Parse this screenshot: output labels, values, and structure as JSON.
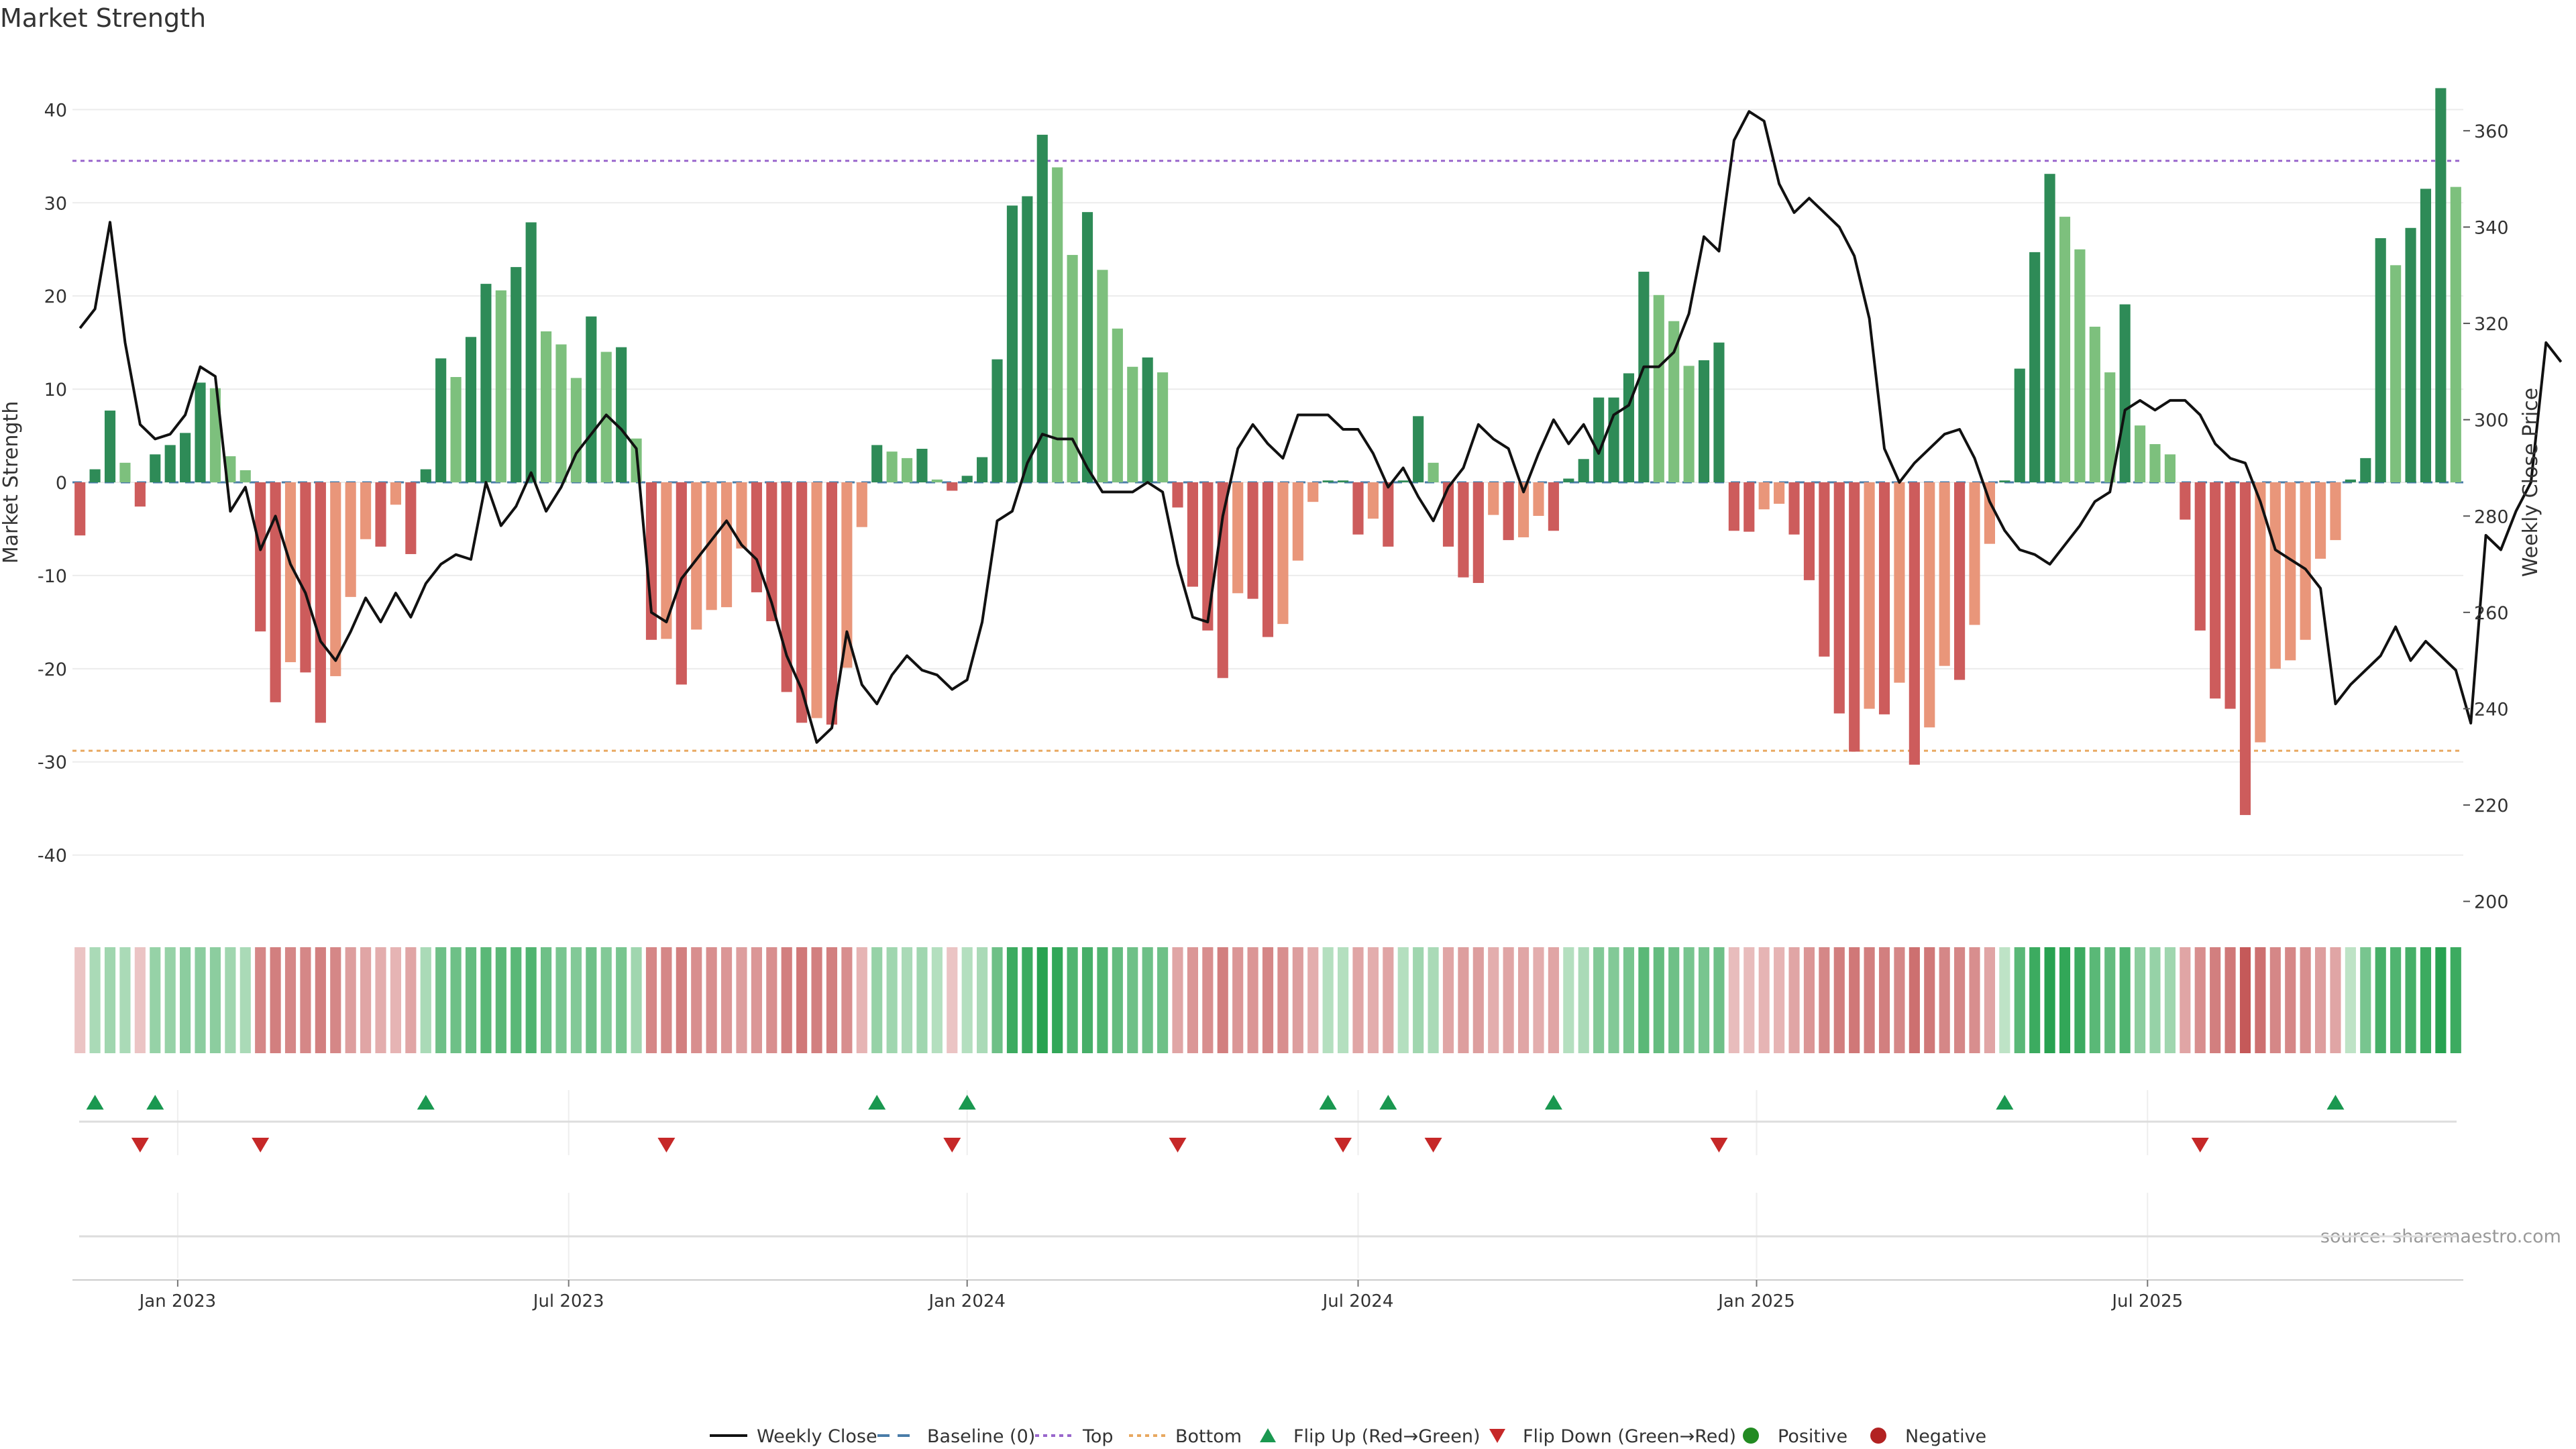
{
  "chart_data": {
    "type": "bar",
    "title": "Market Strength",
    "ylabel": "Market Strength",
    "y2label": "Weekly Close Price",
    "source": "source: sharemaestro.com",
    "ylim": [
      -46,
      46
    ],
    "y2lim": [
      198,
      376
    ],
    "yticks": [
      40,
      30,
      20,
      10,
      0,
      -10,
      -20,
      -30,
      -40
    ],
    "y2ticks": [
      360,
      340,
      320,
      300,
      280,
      260,
      240,
      220,
      200
    ],
    "top_line": 34.5,
    "bottom_line": -28.8,
    "xtick_labels": [
      "Jan 2023",
      "Jul 2023",
      "Jan 2024",
      "Jul 2024",
      "Jan 2025",
      "Jul 2025"
    ],
    "xtick_weeks": [
      7,
      33,
      59.5,
      85.5,
      112,
      138
    ],
    "strength": [
      -5.7,
      1.4,
      7.7,
      2.1,
      -2.6,
      3.0,
      4.0,
      5.3,
      10.7,
      10.1,
      2.8,
      1.3,
      -16.0,
      -23.6,
      -19.3,
      -20.4,
      -25.8,
      -20.8,
      -12.3,
      -6.1,
      -6.9,
      -2.4,
      -7.7,
      1.4,
      13.3,
      11.3,
      15.6,
      21.3,
      20.6,
      23.1,
      27.9,
      16.2,
      14.8,
      11.2,
      17.8,
      14.0,
      14.5,
      4.7,
      -16.9,
      -16.8,
      -21.7,
      -15.8,
      -13.7,
      -13.4,
      -7.1,
      -11.8,
      -14.9,
      -22.5,
      -25.8,
      -25.3,
      -26.0,
      -19.9,
      -4.8,
      4.0,
      3.3,
      2.6,
      3.6,
      0.3,
      -0.9,
      0.7,
      2.7,
      13.2,
      29.7,
      30.7,
      37.3,
      33.8,
      24.4,
      29.0,
      22.8,
      16.5,
      12.4,
      13.4,
      11.8,
      -2.7,
      -11.2,
      -15.9,
      -21.0,
      -11.9,
      -12.5,
      -16.6,
      -15.2,
      -8.4,
      -2.1,
      0.2,
      0.2,
      -5.6,
      -3.9,
      -6.9,
      0.2,
      7.1,
      2.1,
      -6.9,
      -10.2,
      -10.8,
      -3.5,
      -6.2,
      -5.9,
      -3.6,
      -5.2,
      0.4,
      2.5,
      9.1,
      9.1,
      11.7,
      22.6,
      20.1,
      17.3,
      12.5,
      13.1,
      15.0,
      -5.2,
      -5.3,
      -2.9,
      -2.3,
      -5.6,
      -10.5,
      -18.7,
      -24.8,
      -28.9,
      -24.3,
      -24.9,
      -21.5,
      -30.3,
      -26.3,
      -19.7,
      -21.2,
      -15.3,
      -6.6,
      0.2,
      12.2,
      24.7,
      33.1,
      28.5,
      25.0,
      16.7,
      11.8,
      19.1,
      6.1,
      4.1,
      3.0,
      -4.0,
      -15.9,
      -23.2,
      -24.3,
      -35.7,
      -27.9,
      -20.0,
      -19.1,
      -16.9,
      -8.2,
      -6.2,
      0.3,
      2.6,
      26.2,
      23.3,
      27.3,
      31.5,
      42.3,
      31.7
    ],
    "weekly_close": [
      319,
      323,
      341,
      316,
      299,
      296,
      297,
      301,
      311,
      309,
      281,
      286,
      273,
      280,
      270,
      264,
      254,
      250,
      256,
      263,
      258,
      264,
      259,
      266,
      270,
      272,
      271,
      287,
      278,
      282,
      289,
      281,
      286,
      293,
      297,
      301,
      298,
      294,
      260,
      258,
      267,
      271,
      275,
      279,
      274,
      271,
      262,
      251,
      244,
      233,
      236,
      256,
      245,
      241,
      247,
      251,
      248,
      247,
      244,
      246,
      258,
      279,
      281,
      291,
      297,
      296,
      296,
      290,
      285,
      285,
      285,
      287,
      285,
      270,
      259,
      258,
      280,
      294,
      299,
      295,
      292,
      301,
      301,
      301,
      298,
      298,
      293,
      286,
      290,
      284,
      279,
      286,
      290,
      299,
      296,
      294,
      285,
      293,
      300,
      295,
      299,
      293,
      301,
      303,
      311,
      311,
      314,
      322,
      338,
      335,
      358,
      364,
      362,
      349,
      343,
      346,
      343,
      340,
      334,
      321,
      294,
      287,
      291,
      294,
      297,
      298,
      292,
      283,
      277,
      273,
      272,
      270,
      274,
      278,
      283,
      285,
      302,
      304,
      302,
      304,
      304,
      301,
      295,
      292,
      291,
      283,
      273,
      271,
      269,
      265,
      241,
      245,
      248,
      251,
      257,
      250,
      254,
      251,
      248,
      237,
      276,
      273,
      281,
      287,
      316,
      312
    ],
    "heat_intensity": [
      0.2,
      0.3,
      0.35,
      0.3,
      0.2,
      0.4,
      0.4,
      0.45,
      0.45,
      0.45,
      0.35,
      0.3,
      0.6,
      0.65,
      0.6,
      0.6,
      0.65,
      0.6,
      0.45,
      0.4,
      0.35,
      0.3,
      0.4,
      0.3,
      0.6,
      0.6,
      0.65,
      0.7,
      0.7,
      0.7,
      0.75,
      0.6,
      0.55,
      0.5,
      0.6,
      0.5,
      0.55,
      0.35,
      0.6,
      0.6,
      0.65,
      0.55,
      0.55,
      0.5,
      0.45,
      0.5,
      0.55,
      0.65,
      0.7,
      0.65,
      0.65,
      0.55,
      0.3,
      0.4,
      0.35,
      0.3,
      0.35,
      0.25,
      0.2,
      0.25,
      0.3,
      0.6,
      0.85,
      0.85,
      0.95,
      0.9,
      0.75,
      0.8,
      0.75,
      0.65,
      0.6,
      0.6,
      0.6,
      0.4,
      0.5,
      0.55,
      0.65,
      0.5,
      0.5,
      0.6,
      0.55,
      0.45,
      0.35,
      0.25,
      0.25,
      0.4,
      0.35,
      0.4,
      0.25,
      0.35,
      0.3,
      0.4,
      0.45,
      0.45,
      0.35,
      0.4,
      0.4,
      0.35,
      0.4,
      0.25,
      0.3,
      0.5,
      0.5,
      0.55,
      0.7,
      0.65,
      0.6,
      0.55,
      0.55,
      0.6,
      0.25,
      0.25,
      0.3,
      0.3,
      0.4,
      0.5,
      0.6,
      0.65,
      0.7,
      0.65,
      0.65,
      0.6,
      0.75,
      0.7,
      0.6,
      0.6,
      0.55,
      0.4,
      0.2,
      0.7,
      0.85,
      0.95,
      0.9,
      0.85,
      0.7,
      0.65,
      0.75,
      0.45,
      0.4,
      0.35,
      0.4,
      0.55,
      0.65,
      0.7,
      0.9,
      0.75,
      0.6,
      0.6,
      0.55,
      0.45,
      0.4,
      0.2,
      0.55,
      0.8,
      0.75,
      0.8,
      0.85,
      0.95,
      0.85
    ],
    "flip_up_weeks": [
      1,
      5,
      23,
      53,
      59,
      83,
      87,
      98,
      128,
      150
    ],
    "flip_down_weeks": [
      4,
      12,
      39,
      58,
      73,
      84,
      90,
      109,
      141
    ],
    "legend": [
      "Weekly Close",
      "Baseline (0)",
      "Top",
      "Bottom",
      "Flip Up (Red→Green)",
      "Flip Down (Green→Red)",
      "Positive",
      "Negative"
    ],
    "colors": {
      "pos_strong": "#2e8b57",
      "pos_light": "#7dc07d",
      "neg_strong": "#cd5c5c",
      "neg_light": "#e9967a",
      "top_line": "#9966cc",
      "bottom_line": "#e8a860",
      "flip_up": "#1a9850",
      "flip_down": "#c62828",
      "positive_dot": "#228b22",
      "negative_dot": "#b22222",
      "baseline": "#4a7ca8"
    }
  }
}
